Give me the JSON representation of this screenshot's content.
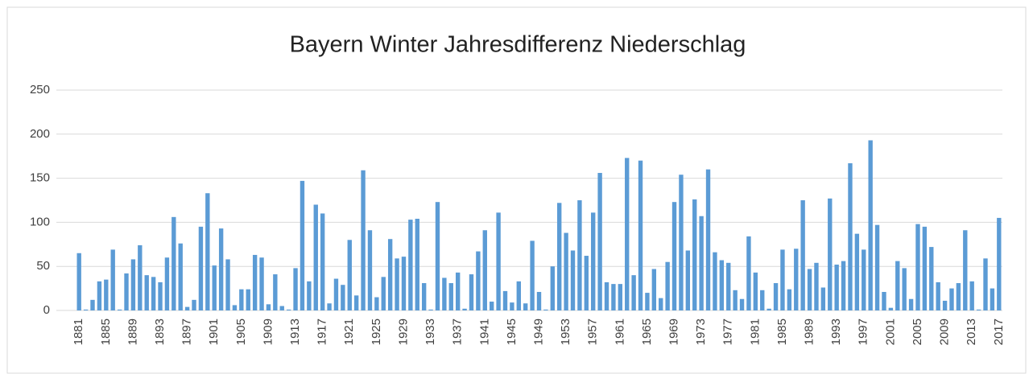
{
  "chart_data": {
    "type": "bar",
    "title": "Bayern Winter Jahresdifferenz Niederschlag",
    "categories": [
      "1881",
      null,
      null,
      null,
      "1885",
      null,
      null,
      null,
      "1889",
      null,
      null,
      null,
      "1893",
      null,
      null,
      null,
      "1897",
      null,
      null,
      null,
      "1901",
      null,
      null,
      null,
      "1905",
      null,
      null,
      null,
      "1909",
      null,
      null,
      null,
      "1913",
      null,
      null,
      null,
      "1917",
      null,
      null,
      null,
      "1921",
      null,
      null,
      null,
      "1925",
      null,
      null,
      null,
      "1929",
      null,
      null,
      null,
      "1933",
      null,
      null,
      null,
      "1937",
      null,
      null,
      null,
      "1941",
      null,
      null,
      null,
      "1945",
      null,
      null,
      null,
      "1949",
      null,
      null,
      null,
      "1953",
      null,
      null,
      null,
      "1957",
      null,
      null,
      null,
      "1961",
      null,
      null,
      null,
      "1965",
      null,
      null,
      null,
      "1969",
      null,
      null,
      null,
      "1973",
      null,
      null,
      null,
      "1977",
      null,
      null,
      null,
      "1981",
      null,
      null,
      null,
      "1985",
      null,
      null,
      null,
      "1989",
      null,
      null,
      null,
      "1993",
      null,
      null,
      null,
      "1997",
      null,
      null,
      null,
      "2001",
      null,
      null,
      null,
      "2005",
      null,
      null,
      null,
      "2009",
      null,
      null,
      null,
      "2013",
      null,
      null,
      null,
      "2017"
    ],
    "values": [
      65,
      1,
      12,
      33,
      35,
      69,
      1,
      42,
      58,
      74,
      40,
      38,
      32,
      60,
      106,
      76,
      4,
      12,
      95,
      133,
      51,
      93,
      58,
      6,
      24,
      24,
      63,
      60,
      7,
      41,
      5,
      1,
      48,
      147,
      33,
      120,
      110,
      8,
      36,
      29,
      80,
      17,
      159,
      91,
      15,
      38,
      81,
      59,
      61,
      103,
      104,
      31,
      1,
      123,
      37,
      31,
      43,
      2,
      41,
      67,
      91,
      10,
      111,
      22,
      9,
      33,
      8,
      79,
      21,
      1,
      50,
      122,
      88,
      68,
      125,
      62,
      111,
      156,
      32,
      30,
      30,
      173,
      40,
      170,
      20,
      47,
      14,
      55,
      123,
      154,
      68,
      126,
      107,
      160,
      66,
      57,
      54,
      23,
      13,
      84,
      43,
      23,
      2,
      31,
      69,
      24,
      70,
      125,
      47,
      54,
      26,
      127,
      52,
      56,
      167,
      87,
      69,
      193,
      97,
      21,
      3,
      56,
      48,
      13,
      98,
      95,
      72,
      32,
      11,
      25,
      31,
      91,
      33,
      1,
      59,
      25,
      105
    ],
    "color": "#5b9bd5",
    "ylim": [
      0,
      250
    ],
    "yticks": [
      0,
      50,
      100,
      150,
      200,
      250
    ],
    "grid": true
  }
}
